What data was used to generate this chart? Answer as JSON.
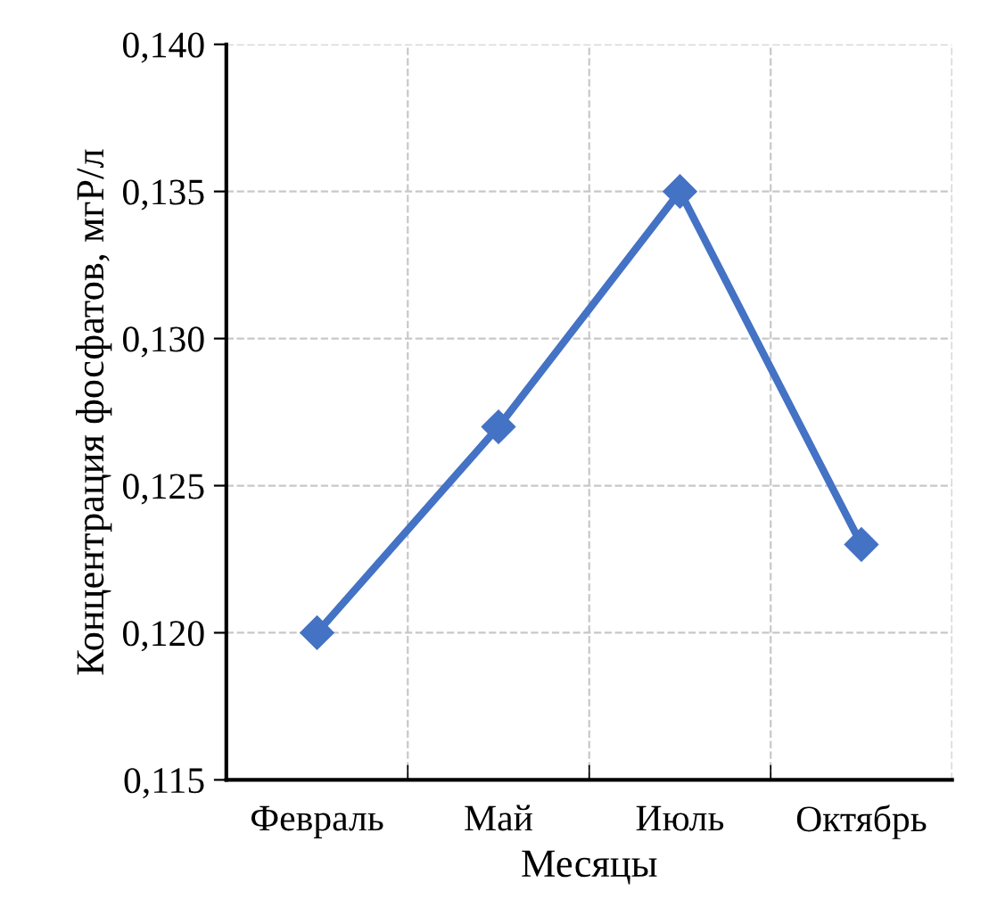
{
  "chart_data": {
    "type": "line",
    "xlabel": "Месяцы",
    "ylabel": "Концентрация фосфатов, мгР/л",
    "categories": [
      "Февраль",
      "Май",
      "Июль",
      "Октябрь"
    ],
    "series": [
      {
        "color": "#4472c4",
        "values": [
          0.12,
          0.127,
          0.135,
          0.123
        ]
      }
    ],
    "ylim": [
      0.115,
      0.14
    ],
    "yticks": [
      {
        "value": 0.115,
        "label": "0,115"
      },
      {
        "value": 0.12,
        "label": "0,120"
      },
      {
        "value": 0.125,
        "label": "0,125"
      },
      {
        "value": 0.13,
        "label": "0,130"
      },
      {
        "value": 0.135,
        "label": "0,135"
      },
      {
        "value": 0.14,
        "label": "0,140"
      }
    ],
    "grid": true,
    "marker": "diamond",
    "line_style": "solid",
    "legend": false
  }
}
